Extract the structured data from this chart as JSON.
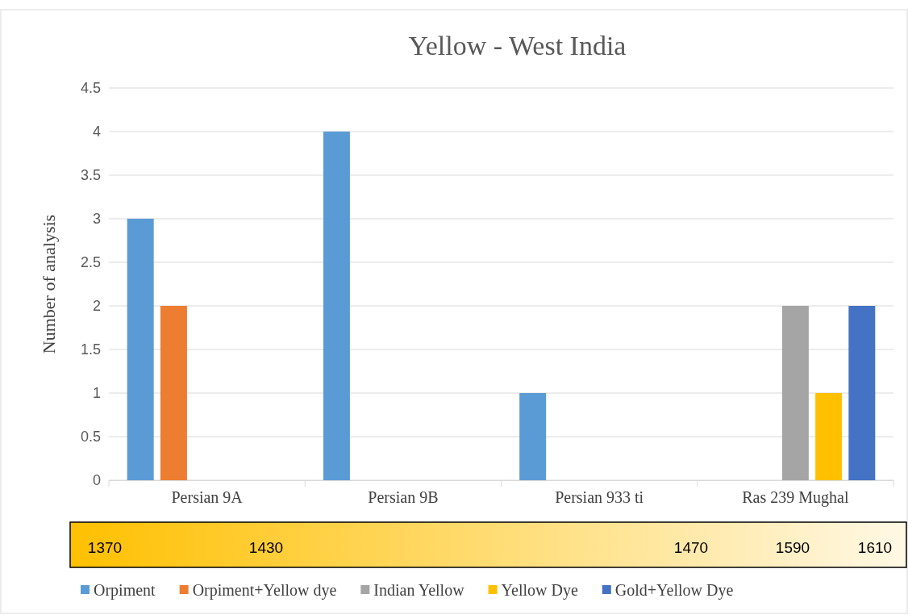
{
  "chart_data": {
    "type": "bar",
    "title": "Yellow - West India",
    "ylabel": "Number of analysis",
    "categories": [
      "Persian 9A",
      "Persian 9B",
      "Persian 933 ti",
      "Ras 239 Mughal"
    ],
    "series": [
      {
        "name": "Orpiment",
        "color": "#5b9bd5",
        "values": [
          3,
          4,
          1,
          null
        ]
      },
      {
        "name": "Orpiment+Yellow dye",
        "color": "#ed7d31",
        "values": [
          2,
          null,
          null,
          null
        ]
      },
      {
        "name": "Indian Yellow",
        "color": "#a5a5a5",
        "values": [
          null,
          null,
          null,
          2
        ]
      },
      {
        "name": "Yellow Dye",
        "color": "#ffc000",
        "values": [
          null,
          null,
          null,
          1
        ]
      },
      {
        "name": "Gold+Yellow Dye",
        "color": "#4472c4",
        "values": [
          null,
          null,
          null,
          2
        ]
      }
    ],
    "ylim": [
      0,
      4.5
    ],
    "yticks": [
      0,
      0.5,
      1,
      1.5,
      2,
      2.5,
      3,
      3.5,
      4,
      4.5
    ],
    "grid": "y",
    "legend": "bottom",
    "annotations": [
      "1370",
      "1430",
      "1470",
      "1590",
      "1610"
    ]
  }
}
